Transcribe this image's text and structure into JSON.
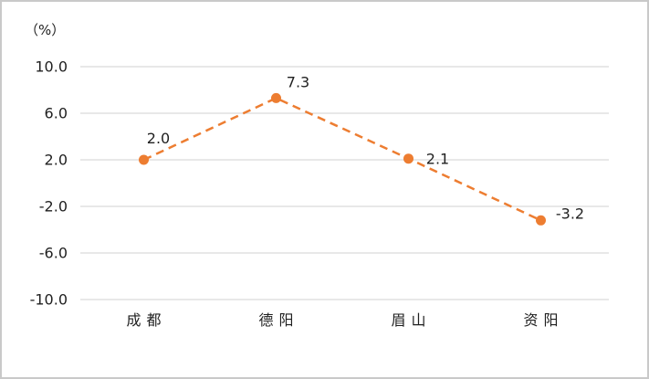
{
  "chart_data": {
    "type": "line",
    "ylabel": "（%）",
    "categories": [
      "成都",
      "德阳",
      "眉山",
      "资阳"
    ],
    "series": [
      {
        "name": "series-1",
        "values": [
          2.0,
          7.3,
          2.1,
          -3.2
        ]
      }
    ],
    "data_labels": [
      "2.0",
      "7.3",
      "2.1",
      "-3.2"
    ],
    "y_ticks": [
      10.0,
      6.0,
      2.0,
      -2.0,
      -6.0,
      -10.0
    ],
    "y_tick_labels": [
      "10.0",
      "6.0",
      "2.0",
      "-2.0",
      "-6.0",
      "-10.0"
    ],
    "ylim": [
      -10.0,
      10.0
    ],
    "grid": true,
    "legend": "none",
    "line_style": "dashed",
    "marker": "circle",
    "colors": {
      "series": "#ED7D31",
      "gridline": "#D9D9D9",
      "text": "#1F1F1F",
      "frame_border": "#C9C9C9",
      "background": "#FFFFFF"
    }
  }
}
